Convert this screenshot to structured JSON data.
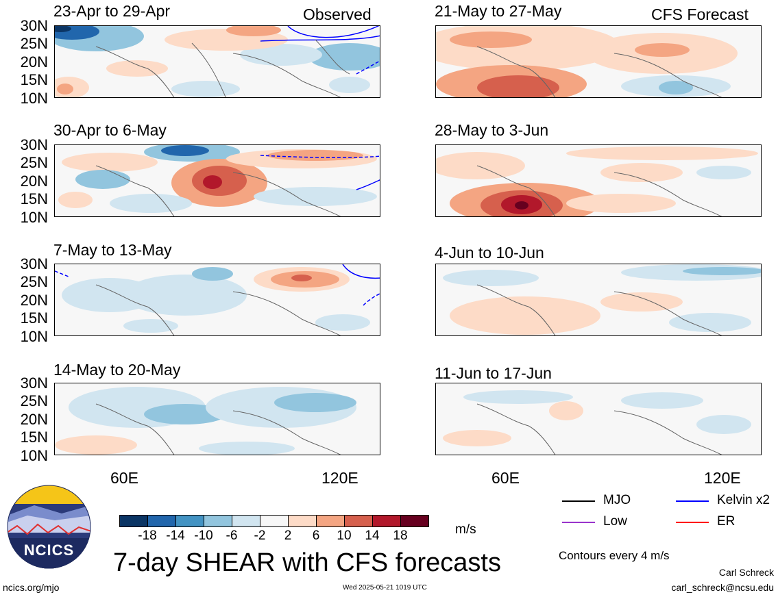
{
  "tags": {
    "observed": "Observed",
    "forecast": "CFS Forecast"
  },
  "panels": {
    "left": [
      {
        "title": "23-Apr to 29-Apr"
      },
      {
        "title": "30-Apr to 6-May"
      },
      {
        "title": "7-May to 13-May"
      },
      {
        "title": "14-May to 20-May"
      }
    ],
    "right": [
      {
        "title": "21-May to 27-May"
      },
      {
        "title": "28-May to 3-Jun"
      },
      {
        "title": "4-Jun to 10-Jun"
      },
      {
        "title": "11-Jun to 17-Jun"
      }
    ]
  },
  "lat_labels": [
    "30N",
    "25N",
    "20N",
    "15N",
    "10N"
  ],
  "lon_labels": [
    "60E",
    "120E"
  ],
  "colorbar": {
    "colors": [
      "#0b3565",
      "#2166ac",
      "#4393c3",
      "#92c5de",
      "#d1e5f0",
      "#f7f7f7",
      "#fddbc7",
      "#f4a582",
      "#d6604d",
      "#b2182b",
      "#67001f"
    ],
    "labels": [
      "-18",
      "-14",
      "-10",
      "-6",
      "-2",
      "2",
      "6",
      "10",
      "14",
      "18"
    ],
    "unit": "m/s"
  },
  "legend": {
    "mjo": {
      "label": "MJO",
      "color": "#000000"
    },
    "kelvin": {
      "label": "Kelvin x2",
      "color": "#0000ff"
    },
    "low": {
      "label": "Low",
      "color": "#9933cc"
    },
    "er": {
      "label": "ER",
      "color": "#ff0000"
    },
    "note": "Contours every 4 m/s"
  },
  "logo_text": "NCICS",
  "main_title": "7-day SHEAR with CFS forecasts",
  "footer": {
    "url": "ncics.org/mjo",
    "timestamp": "Wed 2025-05-21 1019 UTC",
    "author": "Carl Schreck",
    "email": "carl_schreck@ncsu.edu"
  }
}
